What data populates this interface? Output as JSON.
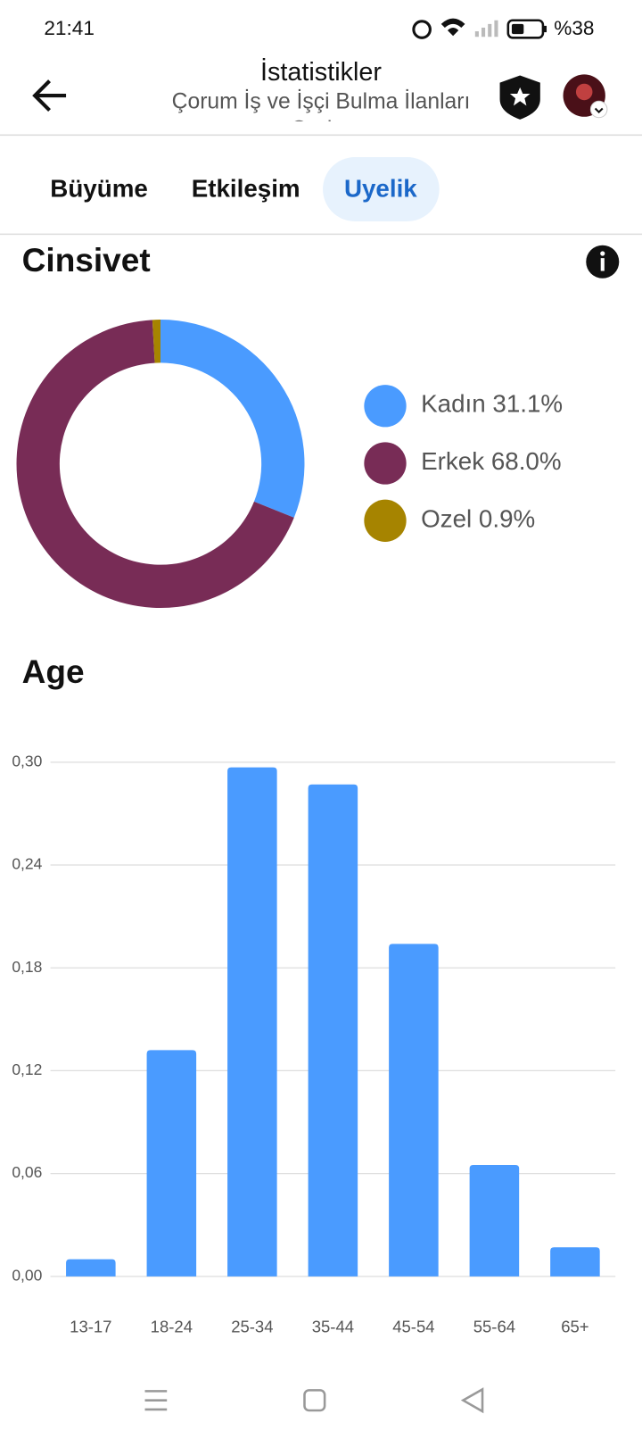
{
  "status_bar": {
    "time": "21:41",
    "battery": "%38"
  },
  "header": {
    "title": "İstatistikler",
    "subtitle": "Çorum İş ve İşçi Bulma İlanları Grubu"
  },
  "tabs": [
    "Büyüme",
    "Etkileşim",
    "Uyelik"
  ],
  "active_tab": 2,
  "gender_section": {
    "title": "Cinsivet"
  },
  "gender_chart": {
    "type": "pie",
    "categories": [
      "Kadın",
      "Erkek",
      "Ozel"
    ],
    "values": [
      31.1,
      68.0,
      0.9
    ],
    "value_labels": [
      "31.1%",
      "68.0%",
      "0.9%"
    ],
    "colors": [
      "#4a9bff",
      "#782c56",
      "#a68400"
    ]
  },
  "age_section": {
    "title": "Age"
  },
  "age_chart": {
    "type": "bar",
    "categories": [
      "13-17",
      "18-24",
      "25-34",
      "35-44",
      "45-54",
      "55-64",
      "65+"
    ],
    "values": [
      0.01,
      0.132,
      0.297,
      0.287,
      0.194,
      0.065,
      0.017
    ],
    "color": "#4a9bff",
    "ylim": [
      0,
      0.3
    ],
    "yticks": [
      {
        "value": 0,
        "label": "0,00"
      },
      {
        "value": 0.06,
        "label": "0,06"
      },
      {
        "value": 0.12,
        "label": "0,12"
      },
      {
        "value": 0.18,
        "label": "0,18"
      },
      {
        "value": 0.24,
        "label": "0,24"
      },
      {
        "value": 0.3,
        "label": "0,30"
      }
    ],
    "grid": true
  }
}
